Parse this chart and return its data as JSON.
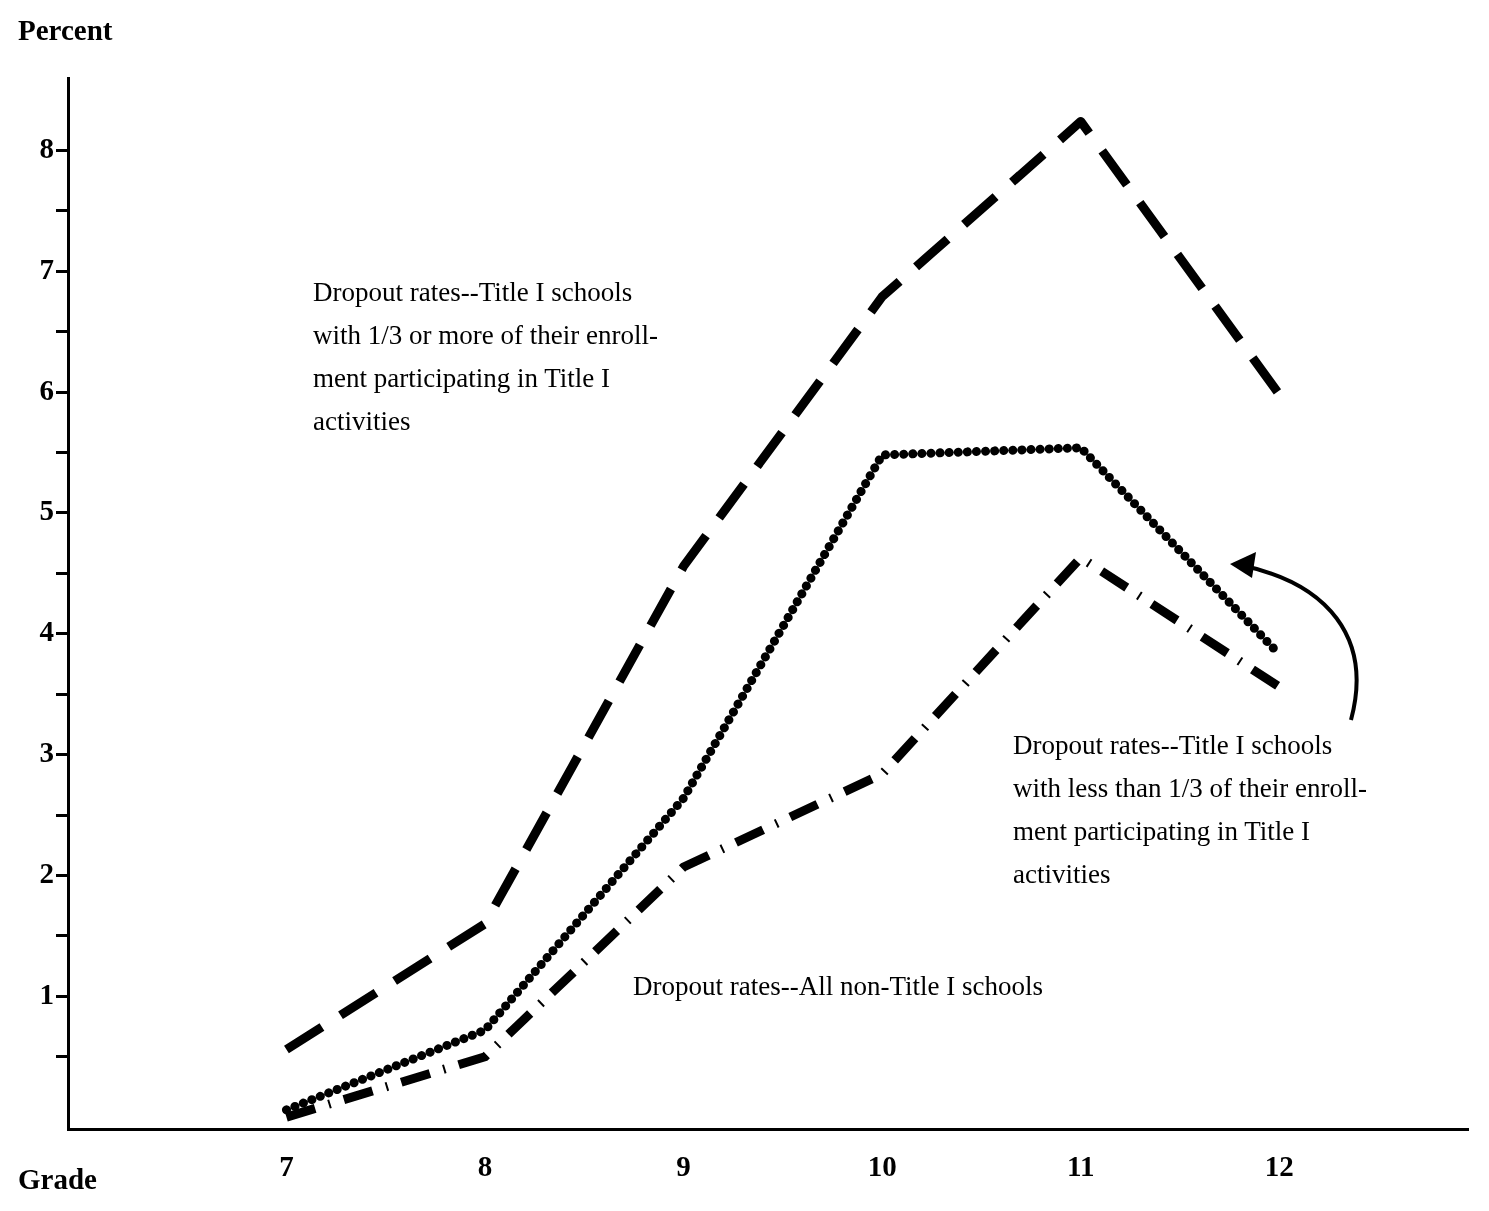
{
  "chart_data": {
    "type": "line",
    "xlabel": "Grade",
    "ylabel": "Percent",
    "x": [
      7,
      8,
      9,
      10,
      11,
      12
    ],
    "xlim": [
      5.9,
      12.95
    ],
    "xticks": [
      7,
      8,
      9,
      10,
      11,
      12
    ],
    "ylim": [
      -0.1,
      8.6
    ],
    "yticks": [
      {
        "value": 0.5,
        "label": null
      },
      1,
      {
        "value": 1.5,
        "label": null
      },
      2,
      {
        "value": 2.5,
        "label": null
      },
      3,
      {
        "value": 3.5,
        "label": null
      },
      4,
      {
        "value": 4.5,
        "label": null
      },
      5,
      {
        "value": 5.5,
        "label": null
      },
      6,
      {
        "value": 6.5,
        "label": null
      },
      7,
      {
        "value": 7.5,
        "label": null
      },
      8
    ],
    "grid": false,
    "legend": false,
    "marker": "none",
    "series": [
      {
        "color": "#000000",
        "line_style": "dashed",
        "values": [
          0.56,
          1.6,
          4.56,
          6.79,
          8.24,
          5.98
        ]
      },
      {
        "color": "#000000",
        "line_style": "dotted",
        "values": [
          0.06,
          0.72,
          2.64,
          5.48,
          5.54,
          3.83
        ]
      },
      {
        "color": "#000000",
        "line_style": "dashdot",
        "values": [
          0,
          0.5,
          2.07,
          2.84,
          4.63,
          3.56
        ]
      }
    ],
    "annotations": [
      "Dropout rates--Title I schools\nwith 1/3 or more of their enroll-\nment participating in Title I\nactivities",
      "Dropout rates--Title I schools\nwith less than 1/3 of their enroll-\nment participating in Title I\nactivities",
      "Dropout rates--All non-Title I schools"
    ]
  }
}
